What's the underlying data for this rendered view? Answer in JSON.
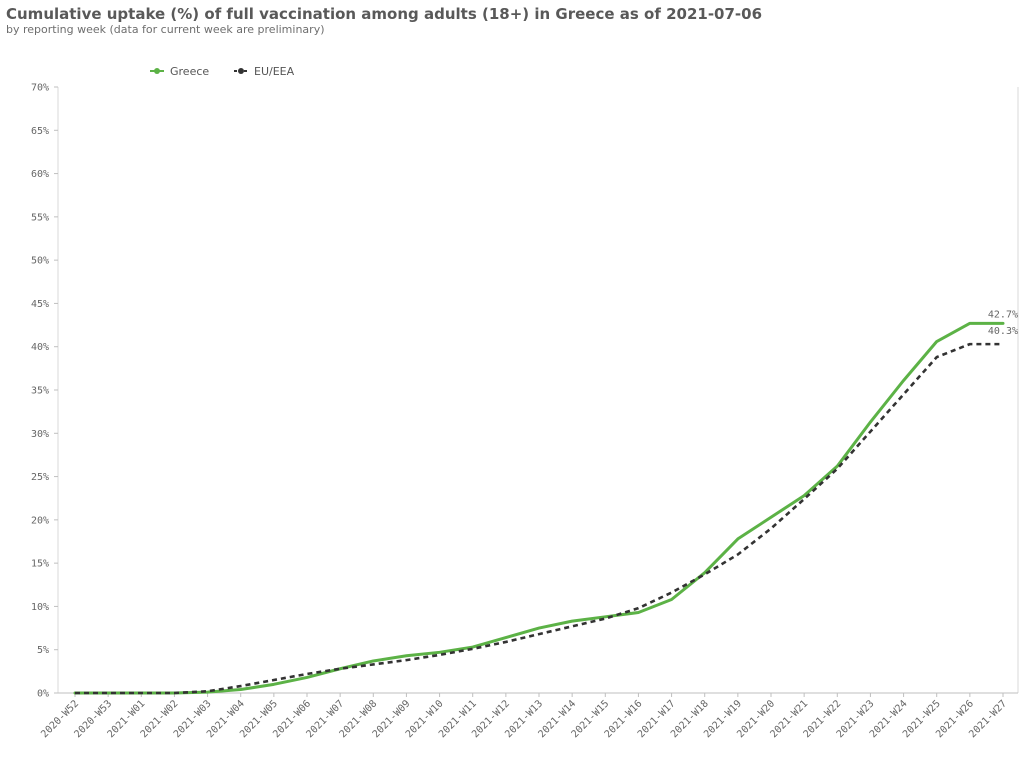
{
  "chart_data": {
    "type": "line",
    "title": "Cumulative uptake (%) of full vaccination among adults (18+) in Greece as of 2021-07-06",
    "subtitle": "by reporting week (data for current week are preliminary)",
    "categories": [
      "2020-W52",
      "2020-W53",
      "2021-W01",
      "2021-W02",
      "2021-W03",
      "2021-W04",
      "2021-W05",
      "2021-W06",
      "2021-W07",
      "2021-W08",
      "2021-W09",
      "2021-W10",
      "2021-W11",
      "2021-W12",
      "2021-W13",
      "2021-W14",
      "2021-W15",
      "2021-W16",
      "2021-W17",
      "2021-W18",
      "2021-W19",
      "2021-W20",
      "2021-W21",
      "2021-W22",
      "2021-W23",
      "2021-W24",
      "2021-W25",
      "2021-W26",
      "2021-W27"
    ],
    "series": [
      {
        "name": "Greece",
        "color": "#5cb246",
        "dashed": false,
        "values": [
          0,
          0,
          0,
          0,
          0.1,
          0.4,
          1.0,
          1.8,
          2.8,
          3.7,
          4.3,
          4.7,
          5.3,
          6.4,
          7.5,
          8.3,
          8.8,
          9.3,
          10.8,
          13.9,
          17.8,
          20.3,
          22.8,
          26.2,
          31.3,
          36.1,
          40.6,
          42.7,
          42.7
        ],
        "end_label": "42.7%"
      },
      {
        "name": "EU/EEA",
        "color": "#333333",
        "dashed": true,
        "values": [
          0,
          0,
          0,
          0,
          0.2,
          0.8,
          1.5,
          2.2,
          2.8,
          3.3,
          3.8,
          4.4,
          5.1,
          5.9,
          6.8,
          7.7,
          8.6,
          9.8,
          11.6,
          13.7,
          16.0,
          19.0,
          22.4,
          25.9,
          30.2,
          34.5,
          38.8,
          40.3,
          40.3
        ],
        "end_label": "40.3%"
      }
    ],
    "y_ticks": [
      0,
      5,
      10,
      15,
      20,
      25,
      30,
      35,
      40,
      45,
      50,
      55,
      60,
      65,
      70
    ],
    "y_tick_suffix": "%",
    "ylim": [
      0,
      70
    ],
    "legend_position": "top-left",
    "grid": false
  }
}
